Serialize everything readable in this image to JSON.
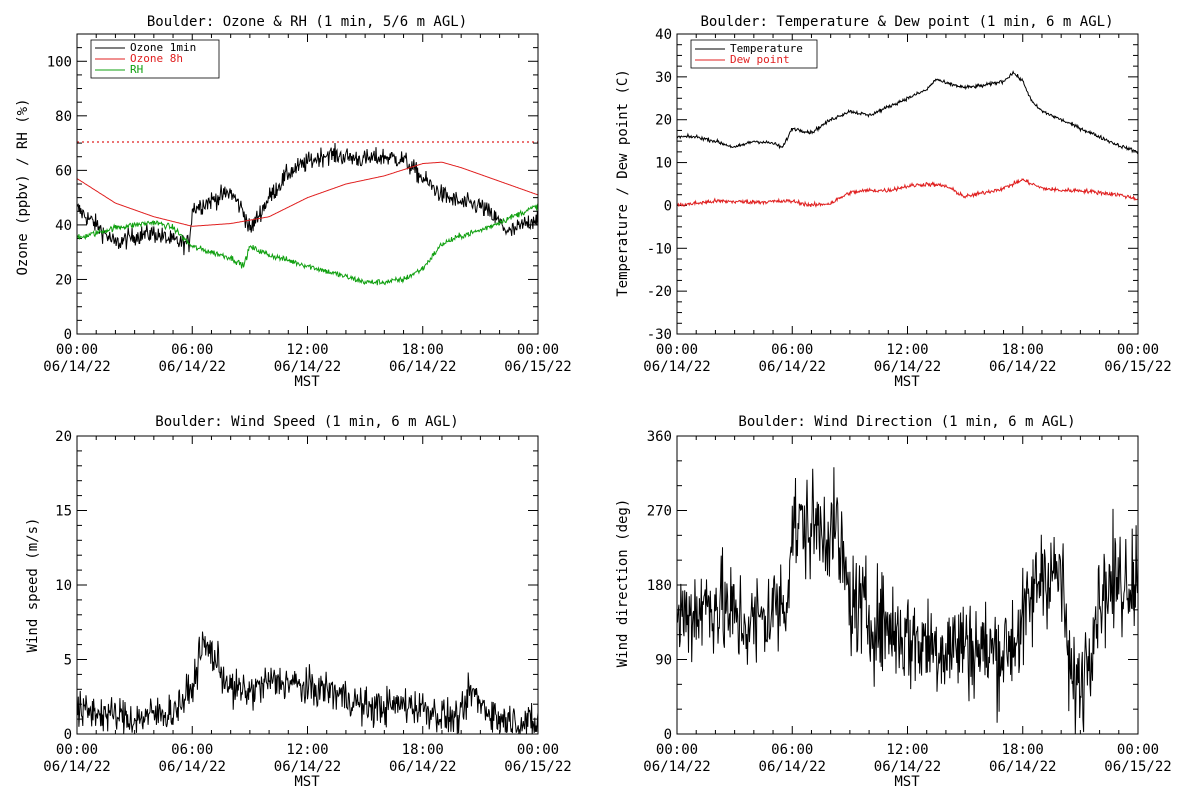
{
  "chart_data": [
    {
      "id": "ozone",
      "type": "line",
      "title": "Boulder: Ozone & RH (1 min, 5/6 m AGL)",
      "xlabel": "MST",
      "ylabel": "Ozone (ppbv) / RH (%)",
      "x_range": [
        "06/14/22 00:00",
        "06/15/22 00:00"
      ],
      "x_ticks": [
        {
          "time": "00:00",
          "date": "06/14/22"
        },
        {
          "time": "06:00",
          "date": "06/14/22"
        },
        {
          "time": "12:00",
          "date": "06/14/22"
        },
        {
          "time": "18:00",
          "date": "06/14/22"
        },
        {
          "time": "00:00",
          "date": "06/15/22"
        }
      ],
      "ylim": [
        0,
        110
      ],
      "y_ticks": [
        0,
        20,
        40,
        60,
        80,
        100
      ],
      "grid": false,
      "legend_position": "top-left",
      "reference_line": {
        "y": 70,
        "color": "#e02020",
        "style": "dotted"
      },
      "series": [
        {
          "name": "Ozone 1min",
          "color": "#000000",
          "noise": 2.5,
          "x": [
            "00:00",
            "01:00",
            "02:00",
            "03:00",
            "04:00",
            "05:00",
            "05:50",
            "06:00",
            "07:00",
            "08:00",
            "08:40",
            "09:00",
            "10:00",
            "11:00",
            "12:00",
            "13:00",
            "14:00",
            "15:00",
            "16:00",
            "17:00",
            "18:00",
            "19:00",
            "20:00",
            "21:00",
            "22:00",
            "22:30",
            "23:00",
            "24:00"
          ],
          "y": [
            46,
            40,
            33,
            36,
            37,
            34,
            33,
            46,
            49,
            52,
            45,
            38,
            50,
            59,
            63,
            66,
            65,
            64,
            65,
            64,
            57,
            51,
            48,
            47,
            41,
            37,
            39,
            43
          ]
        },
        {
          "name": "Ozone 8h",
          "color": "#e02020",
          "noise": 0,
          "x": [
            "00:00",
            "02:00",
            "04:00",
            "06:00",
            "08:00",
            "10:00",
            "12:00",
            "14:00",
            "16:00",
            "18:00",
            "19:00",
            "20:00",
            "22:00",
            "24:00"
          ],
          "y": [
            57,
            48,
            43,
            39.5,
            40.5,
            43,
            50,
            55,
            58,
            62.5,
            63,
            61,
            56,
            51
          ]
        },
        {
          "name": "RH",
          "color": "#10a010",
          "noise": 0.8,
          "x": [
            "00:00",
            "01:00",
            "02:00",
            "03:00",
            "04:00",
            "05:00",
            "06:00",
            "07:00",
            "08:00",
            "08:40",
            "09:00",
            "10:00",
            "11:00",
            "12:00",
            "13:00",
            "14:00",
            "15:00",
            "16:00",
            "17:00",
            "18:00",
            "19:00",
            "20:00",
            "21:00",
            "22:00",
            "23:00",
            "24:00"
          ],
          "y": [
            35,
            37,
            39,
            40,
            41,
            39,
            32,
            30,
            28,
            25,
            32,
            29,
            27,
            25,
            23,
            21,
            19,
            19,
            20,
            24,
            33,
            36,
            38,
            41,
            44,
            47
          ]
        }
      ]
    },
    {
      "id": "temp",
      "type": "line",
      "title": "Boulder: Temperature & Dew point (1 min, 6 m AGL)",
      "xlabel": "MST",
      "ylabel": "Temperature / Dew point (C)",
      "x_range": [
        "06/14/22 00:00",
        "06/15/22 00:00"
      ],
      "x_ticks": [
        {
          "time": "00:00",
          "date": "06/14/22"
        },
        {
          "time": "06:00",
          "date": "06/14/22"
        },
        {
          "time": "12:00",
          "date": "06/14/22"
        },
        {
          "time": "18:00",
          "date": "06/14/22"
        },
        {
          "time": "00:00",
          "date": "06/15/22"
        }
      ],
      "ylim": [
        -30,
        40
      ],
      "y_ticks": [
        -30,
        -20,
        -10,
        0,
        10,
        20,
        30,
        40
      ],
      "grid": false,
      "legend_position": "top-left",
      "series": [
        {
          "name": "Temperature",
          "color": "#000000",
          "noise": 0.3,
          "x": [
            "00:00",
            "01:00",
            "02:00",
            "03:00",
            "04:00",
            "05:00",
            "05:30",
            "06:00",
            "07:00",
            "08:00",
            "09:00",
            "10:00",
            "11:00",
            "12:00",
            "13:00",
            "13:30",
            "14:00",
            "15:00",
            "16:00",
            "17:00",
            "17:30",
            "18:00",
            "18:30",
            "19:00",
            "20:00",
            "21:00",
            "22:00",
            "23:00",
            "24:00"
          ],
          "y": [
            16,
            16,
            15,
            13.5,
            15,
            14.5,
            13.5,
            18,
            17,
            20,
            22,
            21,
            23,
            25,
            27,
            29.5,
            28.5,
            27.5,
            28,
            29,
            31,
            29,
            24,
            22,
            20,
            18,
            16,
            14,
            12.5
          ]
        },
        {
          "name": "Dew point",
          "color": "#e02020",
          "noise": 0.35,
          "x": [
            "00:00",
            "02:00",
            "04:00",
            "06:00",
            "07:00",
            "08:00",
            "09:00",
            "10:00",
            "11:00",
            "12:00",
            "13:00",
            "14:00",
            "15:00",
            "16:00",
            "17:00",
            "18:00",
            "19:00",
            "20:00",
            "21:00",
            "22:00",
            "23:00",
            "24:00"
          ],
          "y": [
            0,
            1,
            0.8,
            1,
            0,
            0.5,
            3,
            3.5,
            3.5,
            4.5,
            5,
            4.5,
            2,
            3,
            4,
            6,
            4,
            3.5,
            3.5,
            3,
            2.5,
            1.5
          ]
        }
      ]
    },
    {
      "id": "wspd",
      "type": "line",
      "title": "Boulder: Wind Speed (1 min, 6 m AGL)",
      "xlabel": "MST",
      "ylabel": "Wind speed (m/s)",
      "x_range": [
        "06/14/22 00:00",
        "06/15/22 00:00"
      ],
      "x_ticks": [
        {
          "time": "00:00",
          "date": "06/14/22"
        },
        {
          "time": "06:00",
          "date": "06/14/22"
        },
        {
          "time": "12:00",
          "date": "06/14/22"
        },
        {
          "time": "18:00",
          "date": "06/14/22"
        },
        {
          "time": "00:00",
          "date": "06/15/22"
        }
      ],
      "ylim": [
        0,
        20
      ],
      "y_ticks": [
        0,
        5,
        10,
        15,
        20
      ],
      "grid": false,
      "series": [
        {
          "name": "",
          "color": "#000000",
          "noise": 0.9,
          "floor": 0,
          "x": [
            "00:00",
            "01:00",
            "02:00",
            "03:00",
            "04:00",
            "05:00",
            "06:00",
            "06:30",
            "07:00",
            "08:00",
            "09:00",
            "10:00",
            "11:00",
            "12:00",
            "13:00",
            "14:00",
            "15:00",
            "16:00",
            "17:00",
            "18:00",
            "19:00",
            "20:00",
            "20:30",
            "21:00",
            "22:00",
            "23:00",
            "24:00"
          ],
          "y": [
            1.5,
            1.5,
            1.2,
            1,
            1.3,
            1.5,
            3,
            6,
            5.5,
            3,
            2.8,
            3.5,
            3.5,
            3,
            3,
            2.5,
            1.8,
            1.8,
            2,
            1.8,
            1.2,
            1,
            3,
            2,
            1,
            0.8,
            0.6
          ]
        }
      ]
    },
    {
      "id": "wdir",
      "type": "line",
      "title": "Boulder: Wind Direction (1 min, 6 m AGL)",
      "xlabel": "MST",
      "ylabel": "Wind direction (deg)",
      "x_range": [
        "06/14/22 00:00",
        "06/15/22 00:00"
      ],
      "x_ticks": [
        {
          "time": "00:00",
          "date": "06/14/22"
        },
        {
          "time": "06:00",
          "date": "06/14/22"
        },
        {
          "time": "12:00",
          "date": "06/14/22"
        },
        {
          "time": "18:00",
          "date": "06/14/22"
        },
        {
          "time": "00:00",
          "date": "06/15/22"
        }
      ],
      "ylim": [
        0,
        360
      ],
      "y_ticks": [
        0,
        90,
        180,
        270,
        360
      ],
      "grid": false,
      "series": [
        {
          "name": "",
          "color": "#000000",
          "noise": 45,
          "floor": 0,
          "ceil": 360,
          "x": [
            "00:00",
            "01:00",
            "02:00",
            "03:00",
            "04:00",
            "05:00",
            "05:40",
            "06:00",
            "07:00",
            "08:00",
            "08:20",
            "09:00",
            "10:00",
            "11:00",
            "12:00",
            "13:00",
            "14:00",
            "15:00",
            "16:00",
            "17:00",
            "18:00",
            "19:00",
            "20:00",
            "20:30",
            "21:00",
            "22:00",
            "23:00",
            "24:00"
          ],
          "y": [
            140,
            150,
            160,
            140,
            130,
            150,
            160,
            250,
            250,
            250,
            240,
            160,
            140,
            130,
            115,
            110,
            105,
            110,
            100,
            100,
            130,
            200,
            190,
            60,
            60,
            170,
            185,
            195
          ]
        }
      ]
    }
  ]
}
